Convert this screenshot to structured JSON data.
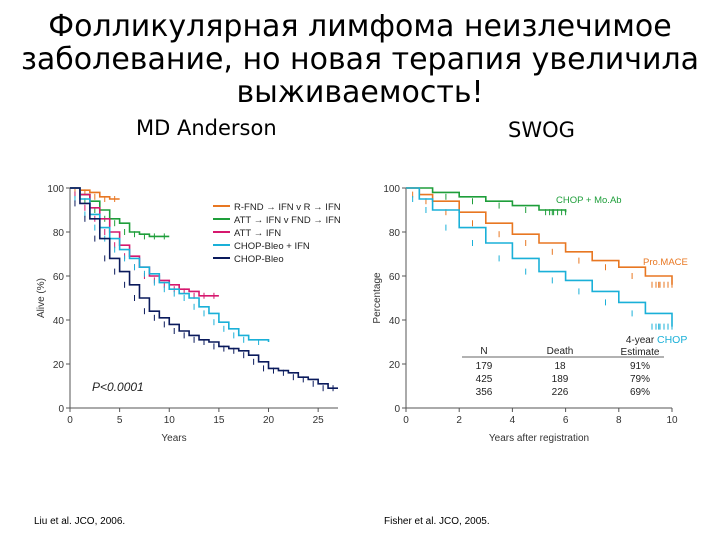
{
  "title_lines": [
    "Фолликулярная лимфома неизлечимое",
    "заболевание, но новая терапия увеличила",
    "выживаемость!"
  ],
  "left_subtitle": "MD Anderson",
  "right_subtitle": "SWOG",
  "left_citation": "Liu et al. JCO, 2006.",
  "right_citation": "Fisher et al. JCO, 2005.",
  "colors": {
    "orange": "#e87722",
    "green": "#1e9e3a",
    "magenta": "#d6186e",
    "cyan": "#1ab0d8",
    "navy": "#0a1a5c",
    "axis": "#555555"
  },
  "chart_data": [
    {
      "type": "line",
      "ylabel": "Alive (%)",
      "xlabel": "Years",
      "xlim": [
        0,
        27
      ],
      "ylim": [
        0,
        100
      ],
      "xticks": [
        "0",
        "5",
        "10",
        "15",
        "20",
        "25"
      ],
      "yticks": [
        "0",
        "20",
        "40",
        "60",
        "80",
        "100"
      ],
      "pvalue": "P<0.0001",
      "legend_position": "top-right",
      "series": [
        {
          "name": "R-FND → IFN v R → IFN",
          "color": "orange",
          "points": [
            [
              0,
              100
            ],
            [
              1,
              99
            ],
            [
              2,
              98
            ],
            [
              3,
              96
            ],
            [
              4,
              95
            ],
            [
              5,
              95
            ]
          ]
        },
        {
          "name": "ATT → IFN v FND → IFN",
          "color": "green",
          "points": [
            [
              0,
              100
            ],
            [
              1,
              97
            ],
            [
              2,
              94
            ],
            [
              3,
              90
            ],
            [
              4,
              86
            ],
            [
              5,
              84
            ],
            [
              6,
              80
            ],
            [
              7,
              79
            ],
            [
              8,
              78
            ],
            [
              9,
              78
            ],
            [
              10,
              78
            ]
          ]
        },
        {
          "name": "ATT → IFN",
          "color": "magenta",
          "points": [
            [
              0,
              100
            ],
            [
              1,
              97
            ],
            [
              2,
              91
            ],
            [
              3,
              86
            ],
            [
              4,
              80
            ],
            [
              5,
              74
            ],
            [
              6,
              69
            ],
            [
              7,
              64
            ],
            [
              8,
              60
            ],
            [
              9,
              58
            ],
            [
              10,
              56
            ],
            [
              11,
              54
            ],
            [
              12,
              53
            ],
            [
              13,
              51
            ],
            [
              14,
              51
            ],
            [
              15,
              51
            ]
          ]
        },
        {
          "name": "CHOP-Bleo + IFN",
          "color": "cyan",
          "points": [
            [
              0,
              100
            ],
            [
              1,
              95
            ],
            [
              2,
              88
            ],
            [
              3,
              82
            ],
            [
              4,
              77
            ],
            [
              5,
              72
            ],
            [
              6,
              68
            ],
            [
              7,
              64
            ],
            [
              8,
              61
            ],
            [
              9,
              57
            ],
            [
              10,
              54
            ],
            [
              11,
              52
            ],
            [
              12,
              50
            ],
            [
              13,
              46
            ],
            [
              14,
              43
            ],
            [
              15,
              39
            ],
            [
              16,
              36
            ],
            [
              17,
              33
            ],
            [
              18,
              31
            ],
            [
              20,
              30
            ]
          ]
        },
        {
          "name": "CHOP-Bleo",
          "color": "navy",
          "points": [
            [
              0,
              100
            ],
            [
              1,
              93
            ],
            [
              2,
              86
            ],
            [
              3,
              77
            ],
            [
              4,
              68
            ],
            [
              5,
              62
            ],
            [
              6,
              56
            ],
            [
              7,
              50
            ],
            [
              8,
              44
            ],
            [
              9,
              41
            ],
            [
              10,
              38
            ],
            [
              11,
              35
            ],
            [
              12,
              33
            ],
            [
              13,
              31
            ],
            [
              14,
              30
            ],
            [
              15,
              28
            ],
            [
              16,
              27
            ],
            [
              17,
              26
            ],
            [
              18,
              24
            ],
            [
              19,
              21
            ],
            [
              20,
              18
            ],
            [
              21,
              17
            ],
            [
              22,
              16
            ],
            [
              23,
              14
            ],
            [
              24,
              13
            ],
            [
              25,
              11
            ],
            [
              26,
              9
            ],
            [
              27,
              9
            ]
          ]
        }
      ]
    },
    {
      "type": "line",
      "ylabel": "Percentage",
      "xlabel": "Years after registration",
      "xlim": [
        0,
        10
      ],
      "ylim": [
        0,
        100
      ],
      "xticks": [
        "0",
        "2",
        "4",
        "6",
        "8",
        "10"
      ],
      "yticks": [
        "0",
        "20",
        "40",
        "60",
        "80",
        "100"
      ],
      "series": [
        {
          "name": "CHOP + Mo.Ab",
          "color": "green",
          "points": [
            [
              0,
              100
            ],
            [
              1,
              98
            ],
            [
              2,
              96
            ],
            [
              3,
              94
            ],
            [
              4,
              92
            ],
            [
              5,
              90
            ],
            [
              6,
              89
            ]
          ]
        },
        {
          "name": "Pro.MACE",
          "color": "orange",
          "points": [
            [
              0,
              100
            ],
            [
              0.5,
              97
            ],
            [
              1,
              94
            ],
            [
              2,
              89
            ],
            [
              3,
              84
            ],
            [
              4,
              79
            ],
            [
              5,
              75
            ],
            [
              6,
              71
            ],
            [
              7,
              67
            ],
            [
              8,
              64
            ],
            [
              9,
              60
            ],
            [
              10,
              56
            ]
          ]
        },
        {
          "name": "CHOP",
          "color": "cyan",
          "points": [
            [
              0,
              100
            ],
            [
              0.5,
              95
            ],
            [
              1,
              90
            ],
            [
              2,
              82
            ],
            [
              3,
              75
            ],
            [
              4,
              68
            ],
            [
              5,
              62
            ],
            [
              6,
              58
            ],
            [
              7,
              53
            ],
            [
              8,
              48
            ],
            [
              9,
              43
            ],
            [
              10,
              37
            ]
          ]
        }
      ],
      "table": {
        "headers": [
          "N",
          "Death",
          "4-year Estimate"
        ],
        "rows": [
          [
            "179",
            "18",
            "91%"
          ],
          [
            "425",
            "189",
            "79%"
          ],
          [
            "356",
            "226",
            "69%"
          ]
        ]
      }
    }
  ]
}
